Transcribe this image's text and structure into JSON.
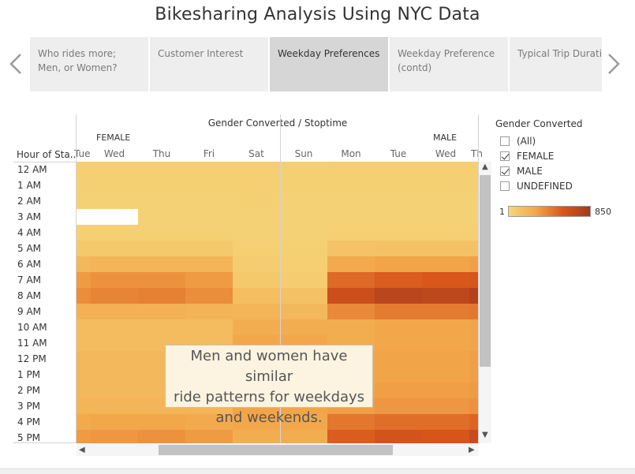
{
  "dashboard": {
    "title": "Bikesharing Analysis Using NYC Data"
  },
  "story_points": [
    {
      "label": "Who rides more; Men, or Women?",
      "active": false
    },
    {
      "label": "Customer Interest",
      "active": false
    },
    {
      "label": "Weekday Preferences",
      "active": true
    },
    {
      "label": "Weekday Preference (contd)",
      "active": false
    },
    {
      "label": "Typical Trip Duratio",
      "active": false
    }
  ],
  "columns": {
    "title": "Gender Converted / Stoptime",
    "row_header": "Hour of Sta..",
    "genders": [
      "FEMALE",
      "MALE"
    ],
    "days": [
      "Tue",
      "Wed",
      "Thu",
      "Fri",
      "Sat",
      "Sun",
      "Mon",
      "Tue",
      "Wed",
      "Th"
    ]
  },
  "rows": {
    "hours": [
      "12 AM",
      "1 AM",
      "2 AM",
      "3 AM",
      "4 AM",
      "5 AM",
      "6 AM",
      "7 AM",
      "8 AM",
      "9 AM",
      "10 AM",
      "11 AM",
      "12 PM",
      "1 PM",
      "2 PM",
      "3 PM",
      "4 PM",
      "5 PM"
    ]
  },
  "heatmap": {
    "color_min": "#f5d77a",
    "color_max": "#a33a1c",
    "intensity": [
      [
        0.06,
        0.06,
        0.06,
        0.06,
        0.06,
        0.05,
        0.06,
        0.06,
        0.06,
        0.06
      ],
      [
        0.05,
        0.05,
        0.05,
        0.05,
        0.06,
        0.05,
        0.05,
        0.05,
        0.05,
        0.05
      ],
      [
        0.04,
        0.04,
        0.04,
        0.04,
        0.05,
        0.04,
        0.04,
        0.04,
        0.04,
        0.04
      ],
      [
        -1,
        -1,
        0.04,
        0.04,
        0.04,
        0.04,
        0.04,
        0.04,
        0.04,
        0.04
      ],
      [
        0.05,
        0.05,
        0.05,
        0.05,
        0.04,
        0.04,
        0.06,
        0.06,
        0.06,
        0.06
      ],
      [
        0.1,
        0.1,
        0.1,
        0.1,
        0.06,
        0.05,
        0.14,
        0.15,
        0.15,
        0.15
      ],
      [
        0.22,
        0.24,
        0.24,
        0.24,
        0.08,
        0.06,
        0.32,
        0.36,
        0.36,
        0.38
      ],
      [
        0.4,
        0.44,
        0.44,
        0.4,
        0.1,
        0.08,
        0.62,
        0.68,
        0.7,
        0.72
      ],
      [
        0.46,
        0.5,
        0.52,
        0.46,
        0.18,
        0.16,
        0.78,
        0.88,
        0.86,
        0.92
      ],
      [
        0.28,
        0.28,
        0.28,
        0.26,
        0.24,
        0.22,
        0.48,
        0.54,
        0.54,
        0.56
      ],
      [
        0.2,
        0.2,
        0.2,
        0.2,
        0.3,
        0.3,
        0.3,
        0.34,
        0.34,
        0.36
      ],
      [
        0.2,
        0.2,
        0.2,
        0.2,
        0.34,
        0.34,
        0.3,
        0.34,
        0.34,
        0.36
      ],
      [
        0.22,
        0.22,
        0.22,
        0.22,
        0.36,
        0.36,
        0.32,
        0.36,
        0.36,
        0.38
      ],
      [
        0.22,
        0.22,
        0.22,
        0.22,
        0.36,
        0.36,
        0.32,
        0.36,
        0.36,
        0.38
      ],
      [
        0.22,
        0.22,
        0.22,
        0.22,
        0.36,
        0.36,
        0.34,
        0.38,
        0.38,
        0.4
      ],
      [
        0.24,
        0.24,
        0.24,
        0.24,
        0.36,
        0.36,
        0.38,
        0.42,
        0.42,
        0.44
      ],
      [
        0.32,
        0.34,
        0.34,
        0.32,
        0.34,
        0.34,
        0.56,
        0.6,
        0.6,
        0.64
      ],
      [
        0.4,
        0.42,
        0.44,
        0.4,
        0.3,
        0.3,
        0.68,
        0.74,
        0.72,
        0.8
      ]
    ]
  },
  "tooltip": {
    "lines": [
      "Men and women have similar",
      "ride patterns for weekdays",
      "and weekends."
    ]
  },
  "filter": {
    "title": "Gender Converted",
    "items": [
      {
        "label": "(All)",
        "checked": false
      },
      {
        "label": "FEMALE",
        "checked": true
      },
      {
        "label": "MALE",
        "checked": true
      },
      {
        "label": "UNDEFINED",
        "checked": false
      }
    ]
  },
  "color_legend": {
    "min_label": "1",
    "max_label": "850"
  },
  "icons": {
    "prev": "chevron-left-icon",
    "next": "chevron-right-icon",
    "scroll_left": "◀",
    "scroll_right": "▶",
    "scroll_up": "▲",
    "scroll_down": "▼"
  }
}
